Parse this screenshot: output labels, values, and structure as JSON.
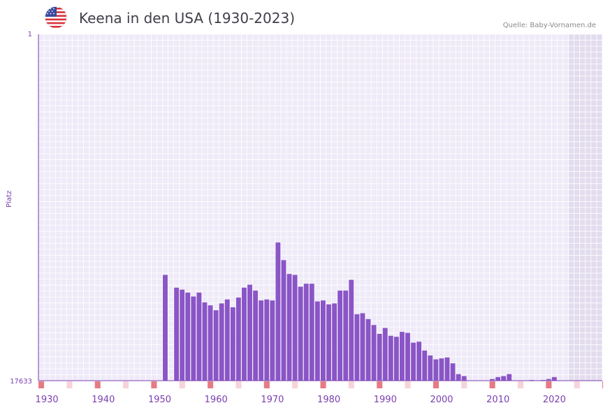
{
  "header": {
    "title": "Keena in den USA (1930-2023)",
    "source": "Quelle: Baby-Vornamen.de",
    "flag_icon": "usa-flag-icon"
  },
  "chart_data": {
    "type": "bar",
    "title": "Keena in den USA (1930-2023)",
    "xlabel": "",
    "ylabel": "Platz",
    "y_axis_inverted": true,
    "ylim": [
      1,
      17633
    ],
    "y_ticks": [
      "1",
      "17633"
    ],
    "x_ticks": [
      1930,
      1940,
      1950,
      1960,
      1970,
      1980,
      1990,
      2000,
      2010,
      2020
    ],
    "xlim": [
      1929,
      2028
    ],
    "shaded_region_from_year": 2023,
    "colors": {
      "bar": "#8a55c6",
      "axis": "#7a3fb0",
      "marker_strong": "#e57b84",
      "marker_light": "#f6d4d9"
    },
    "series": [
      {
        "name": "Platz",
        "points": [
          [
            1951,
            12250
          ],
          [
            1953,
            12900
          ],
          [
            1954,
            13000
          ],
          [
            1955,
            13150
          ],
          [
            1956,
            13350
          ],
          [
            1957,
            13150
          ],
          [
            1958,
            13650
          ],
          [
            1959,
            13800
          ],
          [
            1960,
            14050
          ],
          [
            1961,
            13700
          ],
          [
            1962,
            13500
          ],
          [
            1963,
            13900
          ],
          [
            1964,
            13400
          ],
          [
            1965,
            12900
          ],
          [
            1966,
            12750
          ],
          [
            1967,
            13050
          ],
          [
            1968,
            13550
          ],
          [
            1969,
            13500
          ],
          [
            1970,
            13550
          ],
          [
            1971,
            10600
          ],
          [
            1972,
            11500
          ],
          [
            1973,
            12200
          ],
          [
            1974,
            12250
          ],
          [
            1975,
            12850
          ],
          [
            1976,
            12700
          ],
          [
            1977,
            12700
          ],
          [
            1978,
            13600
          ],
          [
            1979,
            13550
          ],
          [
            1980,
            13750
          ],
          [
            1981,
            13700
          ],
          [
            1982,
            13050
          ],
          [
            1983,
            13050
          ],
          [
            1984,
            12500
          ],
          [
            1985,
            14250
          ],
          [
            1986,
            14200
          ],
          [
            1987,
            14500
          ],
          [
            1988,
            14800
          ],
          [
            1989,
            15250
          ],
          [
            1990,
            14950
          ],
          [
            1991,
            15350
          ],
          [
            1992,
            15400
          ],
          [
            1993,
            15150
          ],
          [
            1994,
            15200
          ],
          [
            1995,
            15700
          ],
          [
            1996,
            15650
          ],
          [
            1997,
            16100
          ],
          [
            1998,
            16350
          ],
          [
            1999,
            16550
          ],
          [
            2000,
            16500
          ],
          [
            2001,
            16450
          ],
          [
            2002,
            16750
          ],
          [
            2003,
            17300
          ],
          [
            2004,
            17400
          ],
          [
            2005,
            17650
          ],
          [
            2006,
            18050
          ],
          [
            2007,
            18050
          ],
          [
            2008,
            17750
          ],
          [
            2009,
            17550
          ],
          [
            2010,
            17450
          ],
          [
            2011,
            17400
          ],
          [
            2012,
            17300
          ],
          [
            2013,
            17950
          ],
          [
            2014,
            17900
          ],
          [
            2015,
            17800
          ],
          [
            2016,
            17600
          ],
          [
            2017,
            17800
          ],
          [
            2018,
            17600
          ],
          [
            2019,
            17550
          ],
          [
            2020,
            17450
          ],
          [
            2021,
            17900
          ],
          [
            2022,
            17650
          ]
        ]
      }
    ],
    "year_markers": {
      "strong": [
        1929,
        1939,
        1949,
        1959,
        1969,
        1979,
        1989,
        1999,
        2009,
        2019,
        2029
      ],
      "light": [
        1934,
        1944,
        1954,
        1964,
        1974,
        1984,
        1994,
        2004,
        2014,
        2024
      ]
    }
  }
}
